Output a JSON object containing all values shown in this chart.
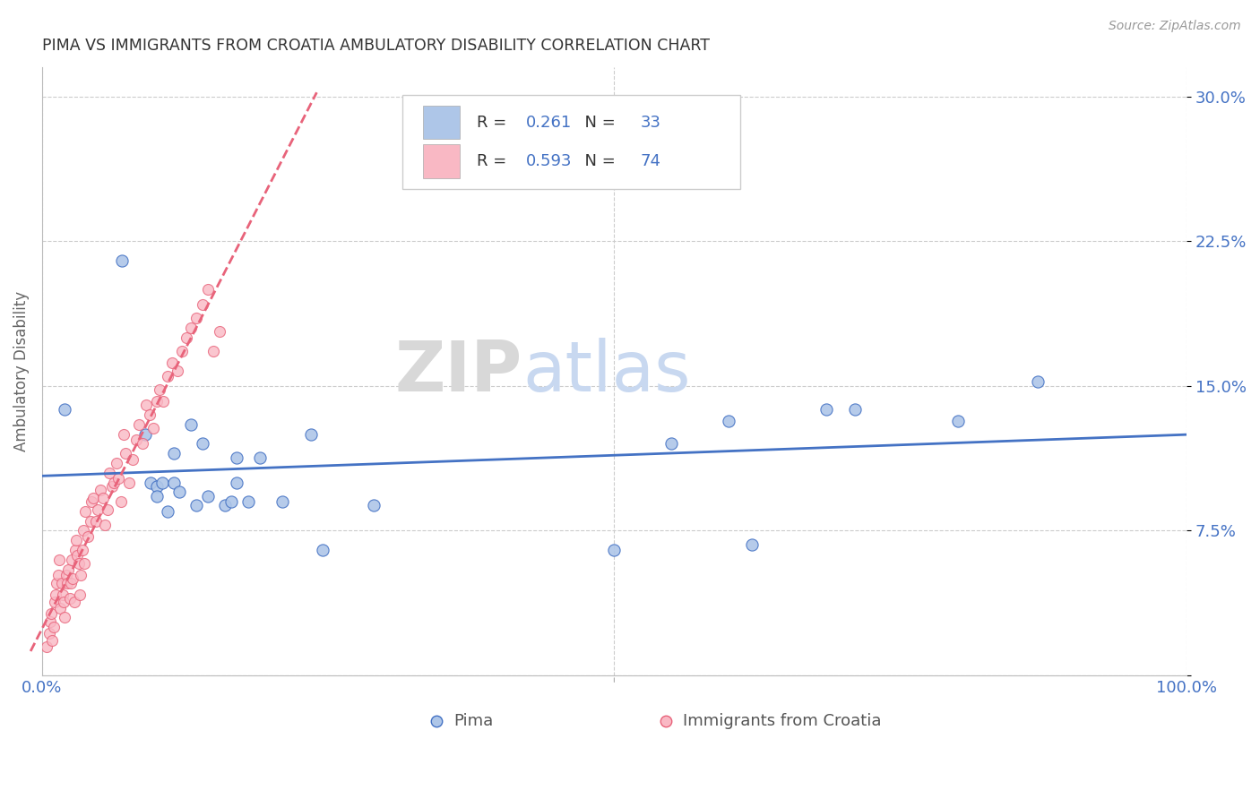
{
  "title": "PIMA VS IMMIGRANTS FROM CROATIA AMBULATORY DISABILITY CORRELATION CHART",
  "source": "Source: ZipAtlas.com",
  "ylabel": "Ambulatory Disability",
  "legend_label1": "Pima",
  "legend_label2": "Immigrants from Croatia",
  "r1": "0.261",
  "n1": "33",
  "r2": "0.593",
  "n2": "74",
  "color_blue": "#aec6e8",
  "color_pink": "#f9b8c4",
  "line_blue": "#4472c4",
  "line_pink": "#e8637a",
  "background": "#ffffff",
  "watermark_zip": "ZIP",
  "watermark_atlas": "atlas",
  "watermark_color_zip": "#d8d8d8",
  "watermark_color_atlas": "#c8d8f0",
  "xlim": [
    0.0,
    1.0
  ],
  "ylim": [
    0.0,
    0.315
  ],
  "yticks": [
    0.0,
    0.075,
    0.15,
    0.225,
    0.3
  ],
  "ytick_labels": [
    "",
    "7.5%",
    "15.0%",
    "22.5%",
    "30.0%"
  ],
  "xticks": [
    0.0,
    0.5,
    1.0
  ],
  "xtick_labels": [
    "0.0%",
    "",
    "100.0%"
  ],
  "pima_x": [
    0.02,
    0.07,
    0.09,
    0.095,
    0.1,
    0.1,
    0.105,
    0.11,
    0.115,
    0.115,
    0.12,
    0.13,
    0.135,
    0.14,
    0.145,
    0.16,
    0.165,
    0.17,
    0.17,
    0.18,
    0.19,
    0.21,
    0.235,
    0.245,
    0.29,
    0.5,
    0.55,
    0.6,
    0.62,
    0.685,
    0.71,
    0.8,
    0.87
  ],
  "pima_y": [
    0.138,
    0.215,
    0.125,
    0.1,
    0.098,
    0.093,
    0.1,
    0.085,
    0.1,
    0.115,
    0.095,
    0.13,
    0.088,
    0.12,
    0.093,
    0.088,
    0.09,
    0.113,
    0.1,
    0.09,
    0.113,
    0.09,
    0.125,
    0.065,
    0.088,
    0.065,
    0.12,
    0.132,
    0.068,
    0.138,
    0.138,
    0.132,
    0.152
  ],
  "croatia_x": [
    0.004,
    0.006,
    0.007,
    0.008,
    0.009,
    0.01,
    0.011,
    0.012,
    0.013,
    0.014,
    0.015,
    0.016,
    0.017,
    0.018,
    0.019,
    0.02,
    0.021,
    0.022,
    0.023,
    0.024,
    0.025,
    0.026,
    0.027,
    0.028,
    0.029,
    0.03,
    0.031,
    0.032,
    0.033,
    0.034,
    0.035,
    0.036,
    0.037,
    0.038,
    0.04,
    0.042,
    0.043,
    0.045,
    0.047,
    0.049,
    0.051,
    0.053,
    0.055,
    0.057,
    0.059,
    0.061,
    0.063,
    0.065,
    0.067,
    0.069,
    0.071,
    0.073,
    0.076,
    0.079,
    0.082,
    0.085,
    0.088,
    0.091,
    0.094,
    0.097,
    0.1,
    0.103,
    0.106,
    0.11,
    0.114,
    0.118,
    0.122,
    0.126,
    0.13,
    0.135,
    0.14,
    0.145,
    0.15,
    0.155
  ],
  "croatia_y": [
    0.015,
    0.022,
    0.028,
    0.032,
    0.018,
    0.025,
    0.038,
    0.042,
    0.048,
    0.052,
    0.06,
    0.035,
    0.048,
    0.042,
    0.038,
    0.03,
    0.052,
    0.048,
    0.055,
    0.04,
    0.048,
    0.06,
    0.05,
    0.038,
    0.065,
    0.07,
    0.062,
    0.058,
    0.042,
    0.052,
    0.065,
    0.075,
    0.058,
    0.085,
    0.072,
    0.08,
    0.09,
    0.092,
    0.08,
    0.086,
    0.096,
    0.092,
    0.078,
    0.086,
    0.105,
    0.098,
    0.1,
    0.11,
    0.102,
    0.09,
    0.125,
    0.115,
    0.1,
    0.112,
    0.122,
    0.13,
    0.12,
    0.14,
    0.135,
    0.128,
    0.142,
    0.148,
    0.142,
    0.155,
    0.162,
    0.158,
    0.168,
    0.175,
    0.18,
    0.185,
    0.192,
    0.2,
    0.168,
    0.178
  ]
}
